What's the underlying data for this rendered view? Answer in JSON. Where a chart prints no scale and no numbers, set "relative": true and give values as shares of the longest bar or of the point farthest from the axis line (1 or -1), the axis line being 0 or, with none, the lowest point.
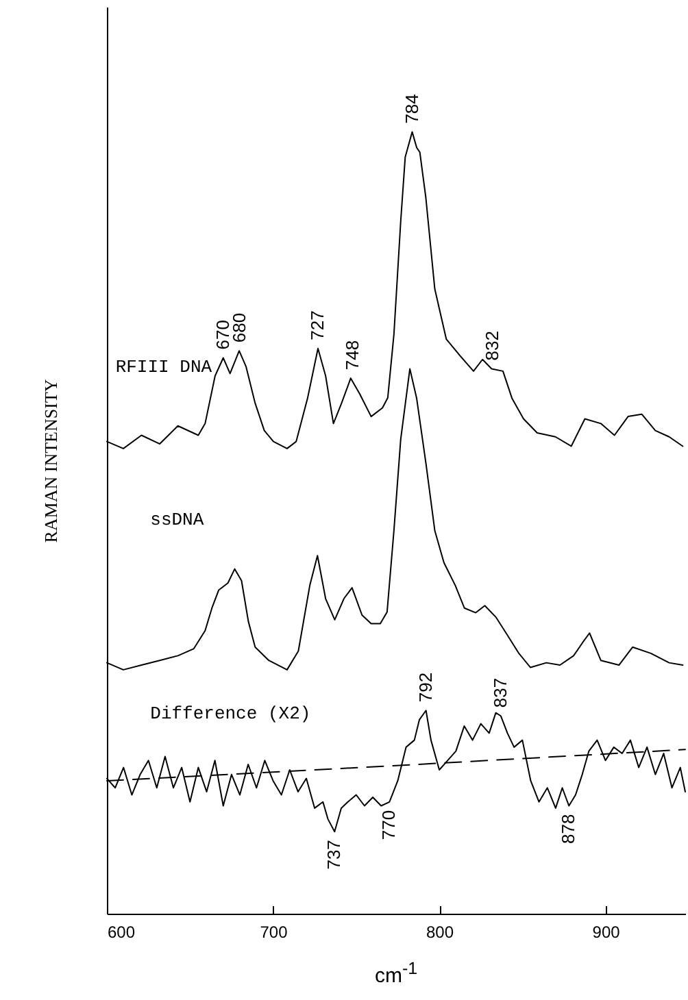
{
  "chart_data": {
    "type": "line",
    "relative": true,
    "xlabel": "cm$^{-1}$",
    "ylabel": "RAMAN INTENSITY",
    "xlim": [
      600,
      948
    ],
    "xticks": [
      600,
      700,
      800,
      900
    ],
    "series": [
      {
        "name": "RFIII DNA",
        "color": "#000000",
        "x": [
          600,
          609.9,
          620.8,
          631.8,
          642.7,
          655,
          659.1,
          665.1,
          670,
          674.1,
          679.6,
          683.7,
          689.2,
          694.7,
          700.2,
          708.4,
          713.9,
          720.7,
          727,
          731.6,
          736.3,
          741.2,
          746.7,
          752.1,
          759,
          765.8,
          769,
          772.7,
          776.8,
          779.5,
          783.7,
          786.4,
          788.3,
          791.9,
          797.3,
          804.2,
          812.4,
          820.6,
          826,
          831.5,
          838.3,
          843.8,
          850.7,
          858.9,
          869.9,
          879.4,
          887.6,
          897.2,
          905.4,
          913.6,
          921.8,
          930,
          938.3,
          946.5
        ],
        "values": [
          0.604,
          0.595,
          0.612,
          0.601,
          0.624,
          0.612,
          0.627,
          0.688,
          0.711,
          0.691,
          0.72,
          0.7,
          0.653,
          0.618,
          0.604,
          0.595,
          0.604,
          0.659,
          0.723,
          0.688,
          0.627,
          0.653,
          0.685,
          0.665,
          0.636,
          0.647,
          0.66,
          0.741,
          0.886,
          0.968,
          1.0,
          0.98,
          0.974,
          0.916,
          0.799,
          0.735,
          0.714,
          0.694,
          0.709,
          0.697,
          0.694,
          0.659,
          0.633,
          0.615,
          0.61,
          0.598,
          0.633,
          0.627,
          0.612,
          0.636,
          0.639,
          0.618,
          0.61,
          0.598
        ]
      },
      {
        "name": "ssDNA",
        "color": "#000000",
        "x": [
          600,
          609.9,
          620.8,
          631.8,
          642.7,
          652.3,
          659.1,
          663.2,
          667.3,
          672.8,
          676.9,
          681,
          685.1,
          689.2,
          697.4,
          708.4,
          715.2,
          722.1,
          726.7,
          731.6,
          737.1,
          742.6,
          747.5,
          753.5,
          759,
          764.5,
          768.6,
          772.7,
          776.8,
          782.3,
          786.4,
          791.9,
          797.3,
          802.8,
          809.6,
          815.1,
          821.9,
          827.4,
          834.2,
          841.1,
          847.9,
          854.8,
          864.4,
          872.6,
          880.8,
          886.3,
          890.4,
          897.2,
          908.1,
          916.3,
          927.3,
          938.3,
          946.5
        ],
        "values": [
          0.321,
          0.312,
          0.318,
          0.324,
          0.33,
          0.339,
          0.362,
          0.391,
          0.414,
          0.423,
          0.441,
          0.426,
          0.374,
          0.341,
          0.324,
          0.312,
          0.336,
          0.42,
          0.458,
          0.403,
          0.376,
          0.403,
          0.417,
          0.382,
          0.371,
          0.371,
          0.386,
          0.49,
          0.607,
          0.697,
          0.659,
          0.577,
          0.49,
          0.449,
          0.42,
          0.391,
          0.385,
          0.394,
          0.379,
          0.356,
          0.333,
          0.315,
          0.321,
          0.318,
          0.33,
          0.347,
          0.359,
          0.324,
          0.318,
          0.341,
          0.333,
          0.321,
          0.318
        ]
      },
      {
        "name": "Difference (X2)",
        "color": "#000000",
        "x": [
          600,
          605,
          610,
          615,
          620,
          625,
          630,
          635,
          640,
          645,
          650,
          655,
          660,
          665,
          670,
          675,
          680,
          685,
          690,
          695,
          700,
          705,
          710,
          715,
          720,
          725,
          730,
          733,
          737,
          741,
          745,
          750,
          755,
          760,
          765,
          770,
          775,
          780,
          785,
          788,
          792,
          795,
          800,
          805,
          810,
          815,
          820,
          825,
          830,
          834,
          837,
          841,
          845,
          850,
          855,
          860,
          865,
          870,
          874,
          878,
          882,
          886,
          890,
          895,
          900,
          905,
          910,
          915,
          920,
          925,
          930,
          935,
          940,
          945,
          948
        ],
        "values": [
          0.173,
          0.161,
          0.187,
          0.152,
          0.178,
          0.196,
          0.161,
          0.201,
          0.161,
          0.187,
          0.143,
          0.187,
          0.156,
          0.196,
          0.138,
          0.178,
          0.152,
          0.191,
          0.161,
          0.196,
          0.17,
          0.152,
          0.184,
          0.156,
          0.173,
          0.135,
          0.143,
          0.121,
          0.105,
          0.135,
          0.143,
          0.152,
          0.138,
          0.149,
          0.138,
          0.143,
          0.17,
          0.213,
          0.222,
          0.248,
          0.26,
          0.222,
          0.184,
          0.196,
          0.208,
          0.24,
          0.222,
          0.243,
          0.231,
          0.257,
          0.253,
          0.231,
          0.213,
          0.222,
          0.17,
          0.143,
          0.161,
          0.135,
          0.161,
          0.138,
          0.152,
          0.178,
          0.208,
          0.222,
          0.196,
          0.213,
          0.205,
          0.222,
          0.187,
          0.213,
          0.178,
          0.205,
          0.161,
          0.187,
          0.156
        ]
      },
      {
        "color": "#000000",
        "line_style": "dashed",
        "x": [
          600,
          770,
          948
        ],
        "values": [
          0.17,
          0.189,
          0.21
        ]
      }
    ],
    "annotations": [
      {
        "text": "670",
        "x": 670,
        "y": 0.711
      },
      {
        "text": "680",
        "x": 680,
        "y": 0.72
      },
      {
        "text": "727",
        "x": 727,
        "y": 0.723
      },
      {
        "text": "748",
        "x": 748,
        "y": 0.685
      },
      {
        "text": "784",
        "x": 784,
        "y": 1.0
      },
      {
        "text": "832",
        "x": 832,
        "y": 0.697
      },
      {
        "text": "792",
        "x": 792,
        "y": 0.26
      },
      {
        "text": "837",
        "x": 837,
        "y": 0.253
      },
      {
        "text": "737",
        "x": 737,
        "y": 0.105
      },
      {
        "text": "770",
        "x": 770,
        "y": 0.143
      },
      {
        "text": "878",
        "x": 878,
        "y": 0.138
      }
    ]
  }
}
